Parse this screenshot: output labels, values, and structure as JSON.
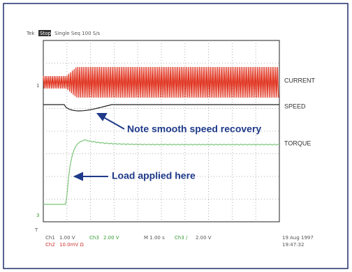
{
  "header": {
    "brand": "Tek",
    "mode": "Stop",
    "acquisition": "Single Seq 100 S/s"
  },
  "markers": {
    "trigger": "T",
    "ch1": "1",
    "ch3": "3"
  },
  "traces": {
    "current": "CURRENT",
    "speed": "SPEED",
    "torque": "TORQUE"
  },
  "annotations": {
    "speed": "Note smooth speed recovery",
    "load": "Load applied here"
  },
  "readout": {
    "ch1": "Ch1",
    "ch1_scale": "1.00 V",
    "ch3": "Ch3",
    "ch3_scale": "2.00 V",
    "time": "M 1.00 s",
    "trig": "Ch3 ∕",
    "trig_level": "2.00 V",
    "ch2": "Ch2",
    "ch2_scale": "10.0mV Ω",
    "date": "19 Aug 1997",
    "clock": "19:47:32"
  }
}
